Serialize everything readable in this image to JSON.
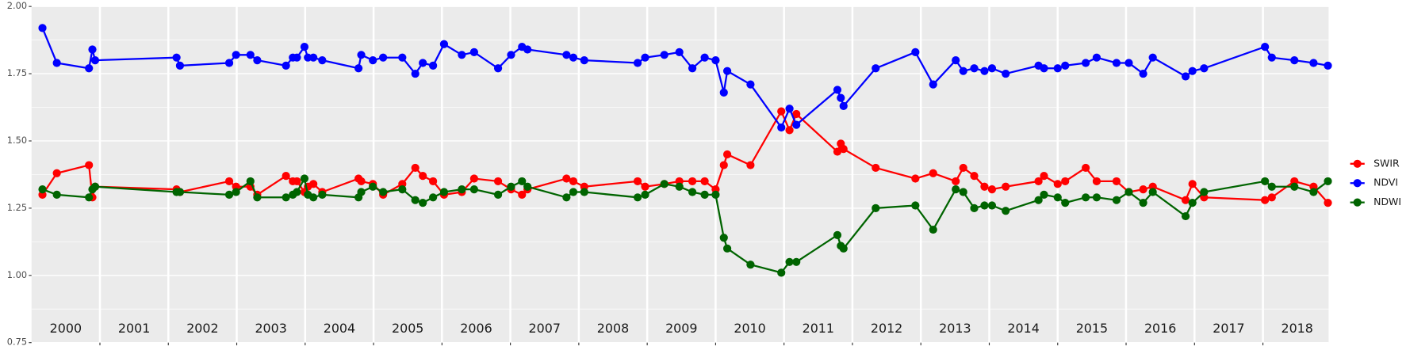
{
  "chart_data": {
    "type": "line",
    "x": [
      2000.16,
      2000.37,
      2000.84,
      2000.89,
      2000.93,
      2002.12,
      2002.17,
      2002.89,
      2002.99,
      2003.2,
      2003.3,
      2003.72,
      2003.82,
      2003.88,
      2003.99,
      2004.04,
      2004.12,
      2004.25,
      2004.78,
      2004.82,
      2004.99,
      2005.14,
      2005.42,
      2005.61,
      2005.72,
      2005.87,
      2006.03,
      2006.29,
      2006.47,
      2006.82,
      2007.01,
      2007.17,
      2007.25,
      2007.82,
      2007.92,
      2008.08,
      2008.86,
      2008.97,
      2009.25,
      2009.47,
      2009.66,
      2009.84,
      2010.0,
      2010.12,
      2010.17,
      2010.51,
      2010.96,
      2011.08,
      2011.18,
      2011.78,
      2011.83,
      2011.87,
      2012.34,
      2012.92,
      2013.18,
      2013.51,
      2013.62,
      2013.78,
      2013.93,
      2014.04,
      2014.24,
      2014.72,
      2014.8,
      2015.0,
      2015.11,
      2015.41,
      2015.57,
      2015.86,
      2016.04,
      2016.25,
      2016.39,
      2016.87,
      2016.97,
      2017.14,
      2018.03,
      2018.13,
      2018.46,
      2018.74,
      2018.95
    ],
    "series": [
      {
        "name": "SWIR",
        "color": "#ff0000",
        "values": [
          1.3,
          1.38,
          1.41,
          1.29,
          1.33,
          1.32,
          1.31,
          1.35,
          1.33,
          1.33,
          1.3,
          1.37,
          1.35,
          1.35,
          1.31,
          1.33,
          1.34,
          1.31,
          1.36,
          1.35,
          1.34,
          1.3,
          1.34,
          1.4,
          1.37,
          1.35,
          1.3,
          1.31,
          1.36,
          1.35,
          1.32,
          1.3,
          1.32,
          1.36,
          1.35,
          1.33,
          1.35,
          1.33,
          1.34,
          1.35,
          1.35,
          1.35,
          1.32,
          1.41,
          1.45,
          1.41,
          1.61,
          1.54,
          1.6,
          1.46,
          1.49,
          1.47,
          1.4,
          1.36,
          1.38,
          1.35,
          1.4,
          1.37,
          1.33,
          1.32,
          1.33,
          1.35,
          1.37,
          1.34,
          1.35,
          1.4,
          1.35,
          1.35,
          1.31,
          1.32,
          1.33,
          1.28,
          1.34,
          1.29,
          1.28,
          1.29,
          1.35,
          1.33,
          1.27
        ]
      },
      {
        "name": "NDVI",
        "color": "#0000ff",
        "values": [
          1.92,
          1.79,
          1.77,
          1.84,
          1.8,
          1.81,
          1.78,
          1.79,
          1.82,
          1.82,
          1.8,
          1.78,
          1.81,
          1.81,
          1.85,
          1.81,
          1.81,
          1.8,
          1.77,
          1.82,
          1.8,
          1.81,
          1.81,
          1.75,
          1.79,
          1.78,
          1.86,
          1.82,
          1.83,
          1.77,
          1.82,
          1.85,
          1.84,
          1.82,
          1.81,
          1.8,
          1.79,
          1.81,
          1.82,
          1.83,
          1.77,
          1.81,
          1.8,
          1.68,
          1.76,
          1.71,
          1.55,
          1.62,
          1.56,
          1.69,
          1.66,
          1.63,
          1.77,
          1.83,
          1.71,
          1.8,
          1.76,
          1.77,
          1.76,
          1.77,
          1.75,
          1.78,
          1.77,
          1.77,
          1.78,
          1.79,
          1.81,
          1.79,
          1.79,
          1.75,
          1.81,
          1.74,
          1.76,
          1.77,
          1.85,
          1.81,
          1.8,
          1.79,
          1.78
        ]
      },
      {
        "name": "NDWI",
        "color": "#006400",
        "values": [
          1.32,
          1.3,
          1.29,
          1.32,
          1.33,
          1.31,
          1.31,
          1.3,
          1.31,
          1.35,
          1.29,
          1.29,
          1.3,
          1.31,
          1.36,
          1.3,
          1.29,
          1.3,
          1.29,
          1.31,
          1.33,
          1.31,
          1.32,
          1.28,
          1.27,
          1.29,
          1.31,
          1.32,
          1.32,
          1.3,
          1.33,
          1.35,
          1.33,
          1.29,
          1.31,
          1.31,
          1.29,
          1.3,
          1.34,
          1.33,
          1.31,
          1.3,
          1.3,
          1.14,
          1.1,
          1.04,
          1.01,
          1.05,
          1.05,
          1.15,
          1.11,
          1.1,
          1.25,
          1.26,
          1.17,
          1.32,
          1.31,
          1.25,
          1.26,
          1.26,
          1.24,
          1.28,
          1.3,
          1.29,
          1.27,
          1.29,
          1.29,
          1.28,
          1.31,
          1.27,
          1.31,
          1.22,
          1.27,
          1.31,
          1.35,
          1.33,
          1.33,
          1.31,
          1.35
        ]
      }
    ],
    "xlim": [
      2000,
      2018.96
    ],
    "xticks": [
      2001,
      2002,
      2003,
      2004,
      2005,
      2006,
      2007,
      2008,
      2009,
      2010,
      2011,
      2012,
      2013,
      2014,
      2015,
      2016,
      2017,
      2018
    ],
    "year_labels": [
      "2000",
      "2001",
      "2002",
      "2003",
      "2004",
      "2005",
      "2006",
      "2007",
      "2008",
      "2009",
      "2010",
      "2011",
      "2012",
      "2013",
      "2014",
      "2015",
      "2016",
      "2017",
      "2018"
    ],
    "ylim": [
      0.75,
      2
    ],
    "yticks": [
      {
        "value": 0.75,
        "label": "0.75"
      },
      {
        "value": 1,
        "label": "1.00"
      },
      1.25,
      {
        "value": 1.5,
        "label": "1.50"
      },
      1.75,
      {
        "value": 2,
        "label": "2.00"
      }
    ],
    "grid": true
  }
}
